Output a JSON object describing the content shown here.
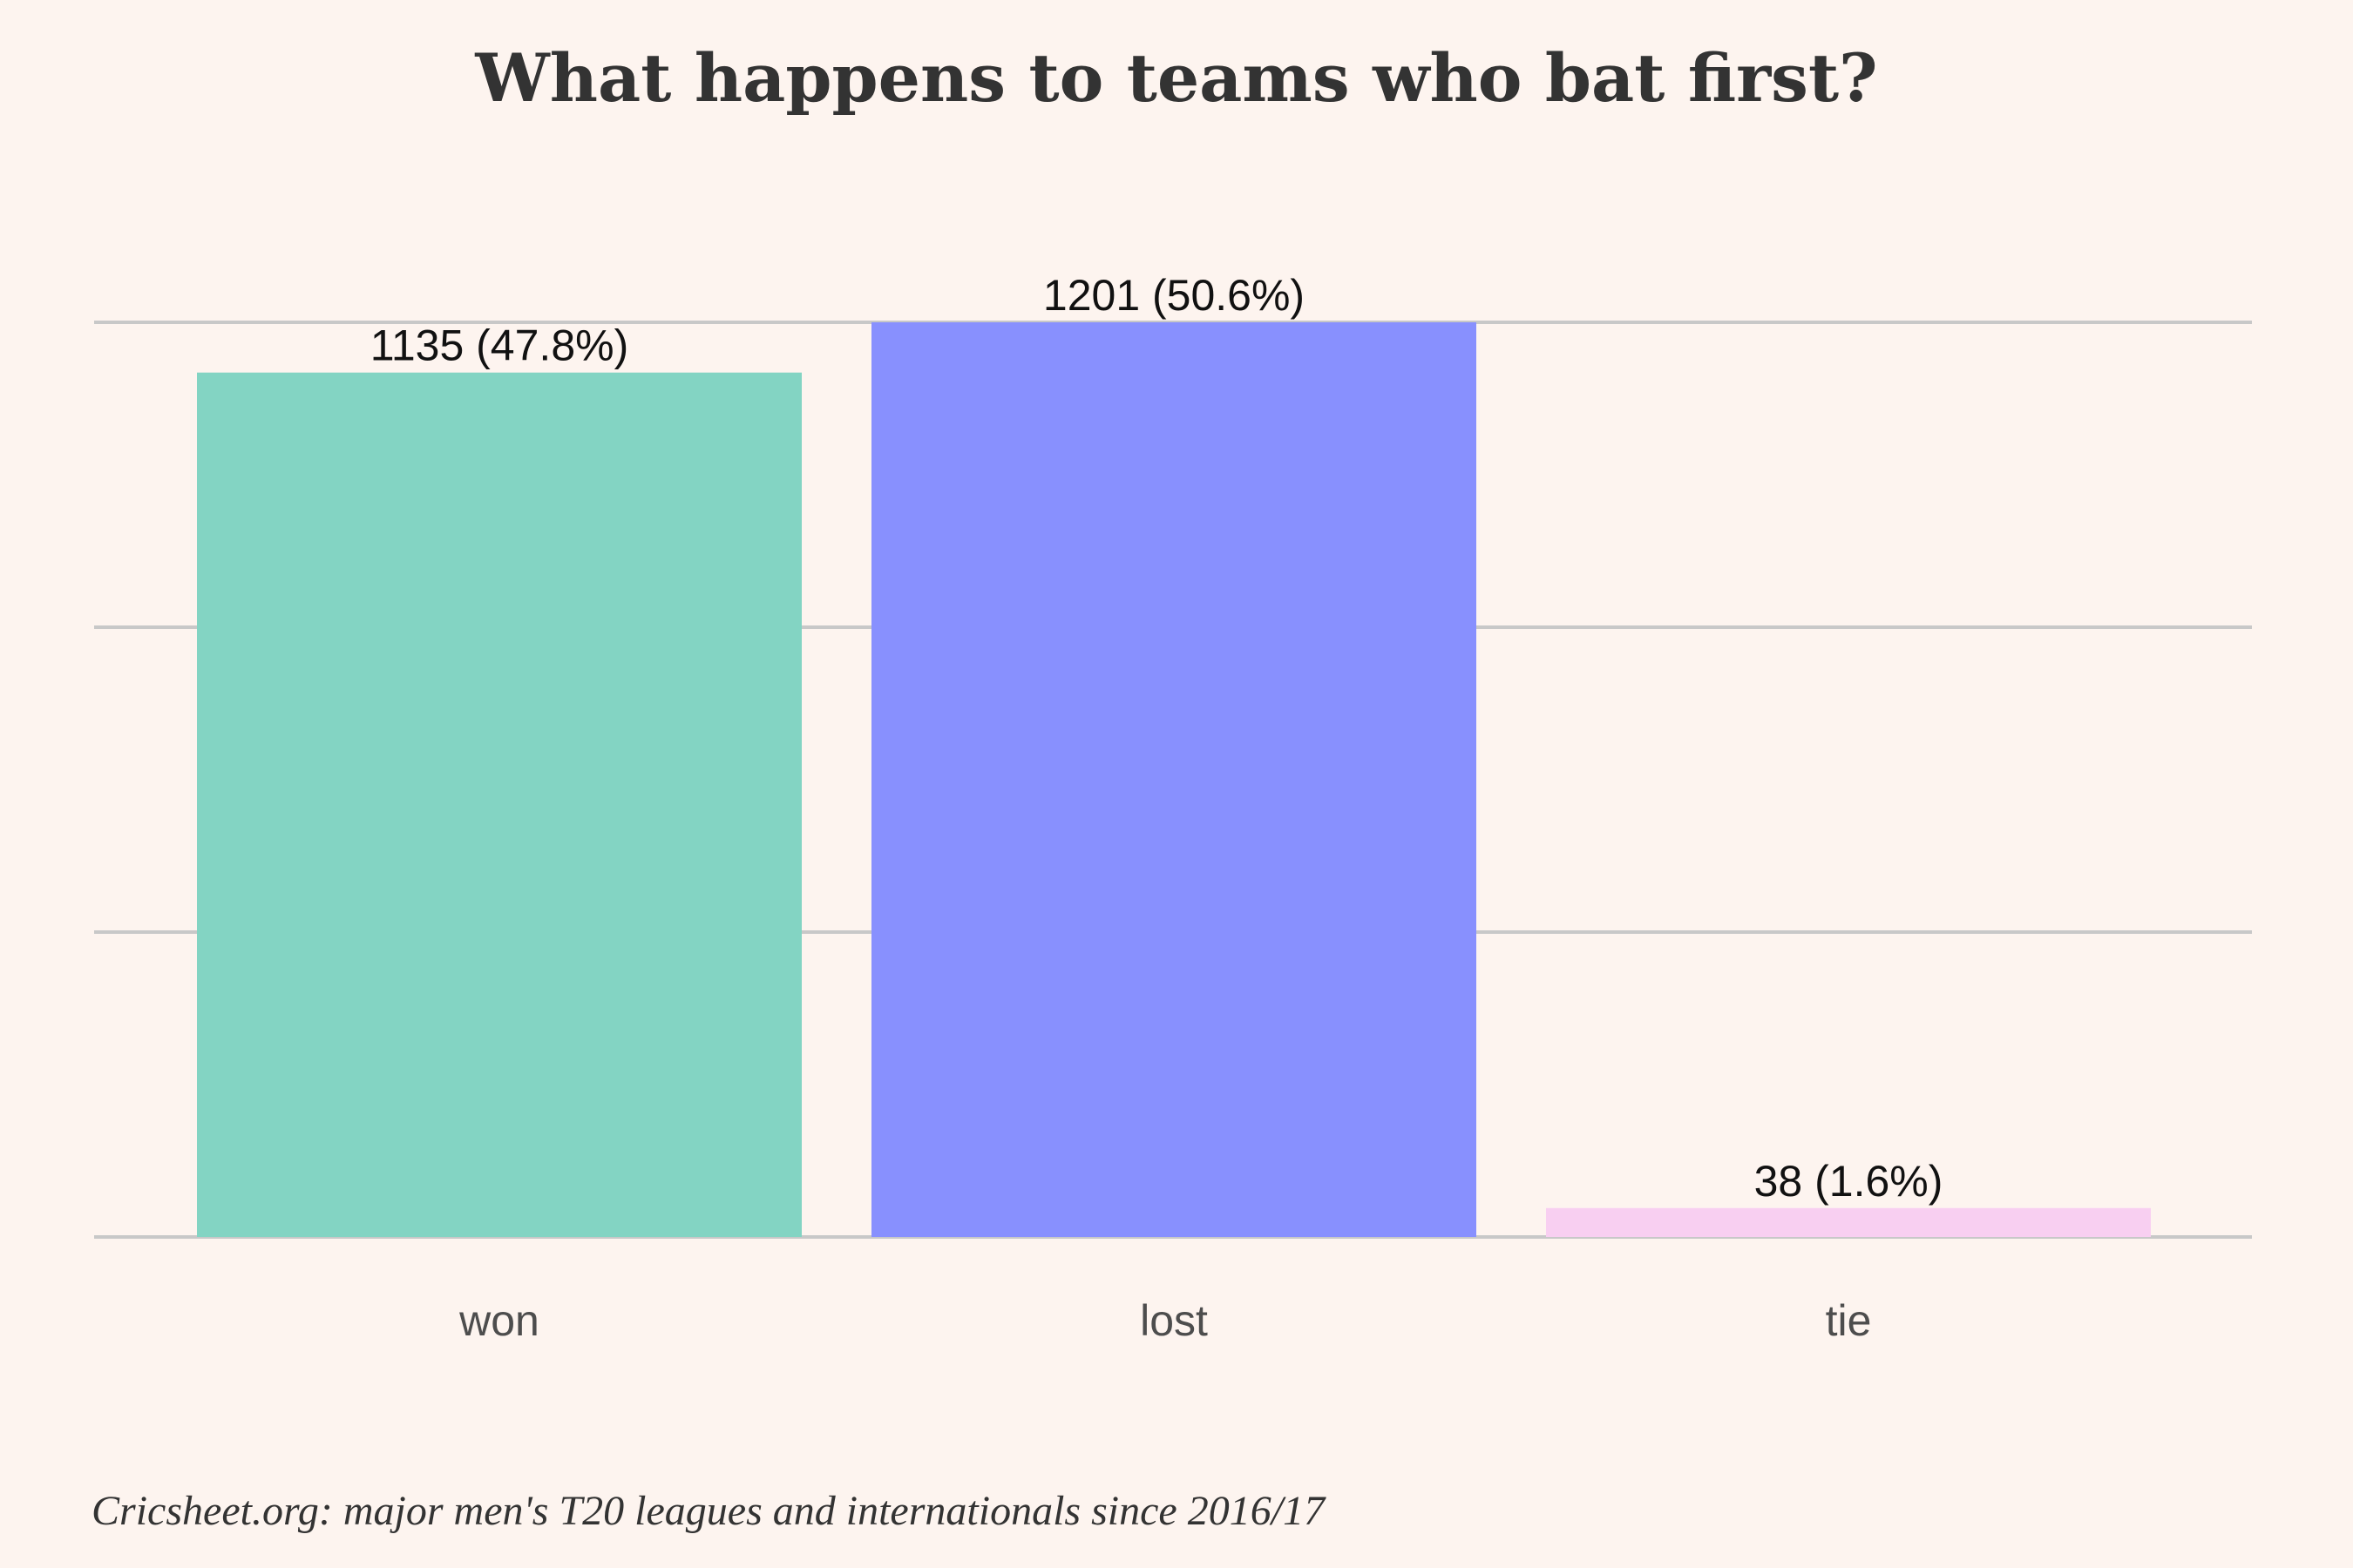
{
  "chart_data": {
    "type": "bar",
    "title": "What happens to teams who bat first?",
    "caption": "Cricsheet.org: major men's T20 leagues and internationals since 2016/17",
    "categories": [
      "won",
      "lost",
      "tie"
    ],
    "values": [
      1135,
      1201,
      38
    ],
    "value_labels": [
      "1135 (47.8%)",
      "1201 (50.6%)",
      "38 (1.6%)"
    ],
    "colors": [
      "#83d4c3",
      "#8890fe",
      "#f8cff1"
    ],
    "ylim": [
      0,
      1201
    ],
    "grid": true,
    "legend": "none"
  }
}
